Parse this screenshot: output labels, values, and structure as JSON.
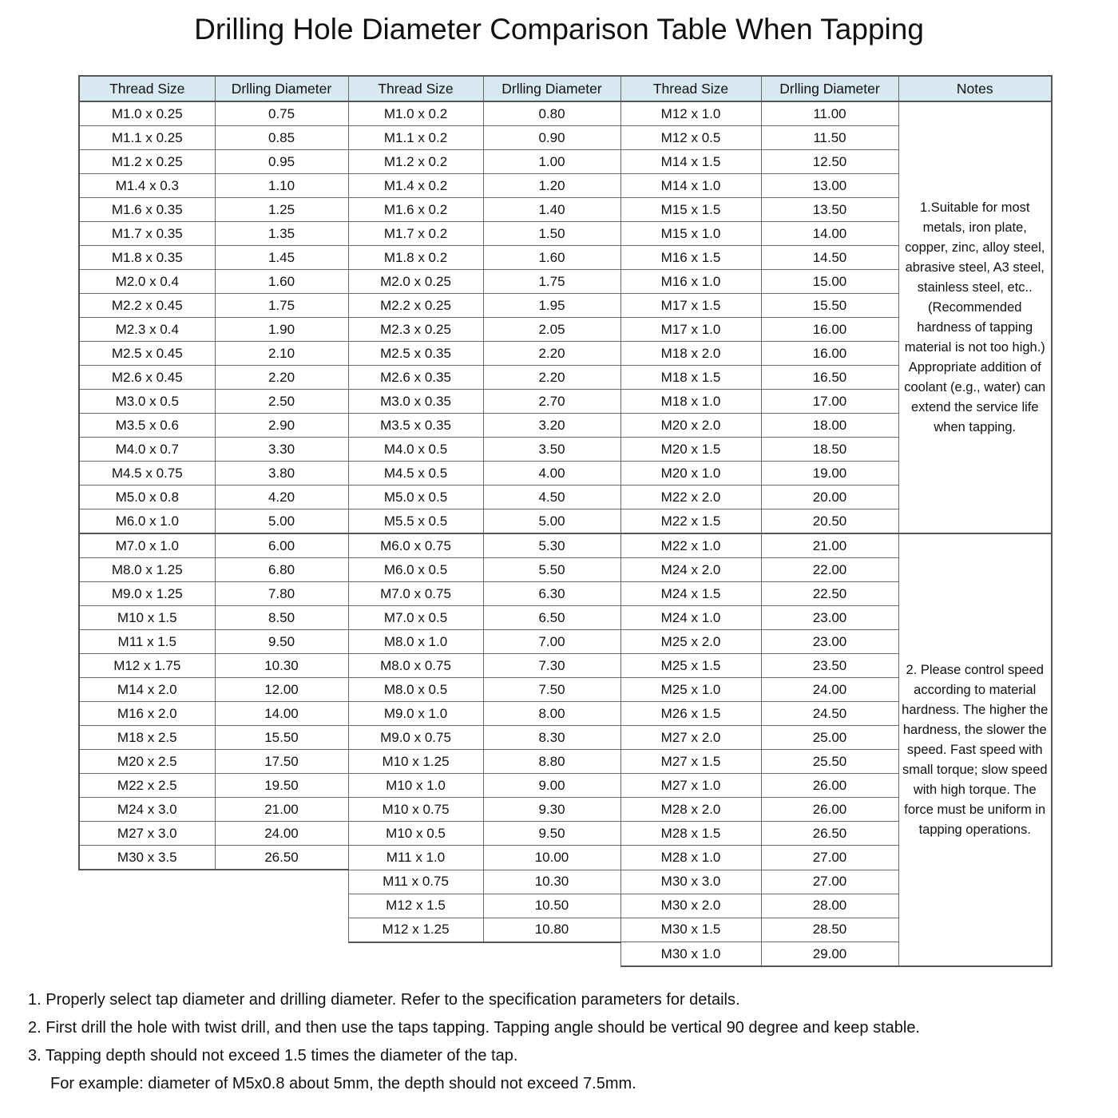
{
  "title": "Drilling Hole Diameter Comparison Table When Tapping",
  "colors": {
    "header_bg": "#d8e9f1",
    "border": "#6a6a6a"
  },
  "table": {
    "headers": [
      "Thread Size",
      "Drlling Diameter",
      "Thread Size",
      "Drlling Diameter",
      "Thread Size",
      "Drlling Diameter",
      "Notes"
    ],
    "total_rows": 36,
    "note_split_row": 18,
    "col1": [
      [
        "M1.0 x 0.25",
        "0.75"
      ],
      [
        "M1.1 x 0.25",
        "0.85"
      ],
      [
        "M1.2 x 0.25",
        "0.95"
      ],
      [
        "M1.4 x 0.3",
        "1.10"
      ],
      [
        "M1.6 x 0.35",
        "1.25"
      ],
      [
        "M1.7 x 0.35",
        "1.35"
      ],
      [
        "M1.8 x 0.35",
        "1.45"
      ],
      [
        "M2.0 x 0.4",
        "1.60"
      ],
      [
        "M2.2 x 0.45",
        "1.75"
      ],
      [
        "M2.3 x 0.4",
        "1.90"
      ],
      [
        "M2.5 x 0.45",
        "2.10"
      ],
      [
        "M2.6 x 0.45",
        "2.20"
      ],
      [
        "M3.0 x 0.5",
        "2.50"
      ],
      [
        "M3.5 x 0.6",
        "2.90"
      ],
      [
        "M4.0 x 0.7",
        "3.30"
      ],
      [
        "M4.5 x 0.75",
        "3.80"
      ],
      [
        "M5.0 x 0.8",
        "4.20"
      ],
      [
        "M6.0 x 1.0",
        "5.00"
      ],
      [
        "M7.0 x 1.0",
        "6.00"
      ],
      [
        "M8.0 x 1.25",
        "6.80"
      ],
      [
        "M9.0 x 1.25",
        "7.80"
      ],
      [
        "M10 x 1.5",
        "8.50"
      ],
      [
        "M11 x 1.5",
        "9.50"
      ],
      [
        "M12 x 1.75",
        "10.30"
      ],
      [
        "M14 x 2.0",
        "12.00"
      ],
      [
        "M16 x 2.0",
        "14.00"
      ],
      [
        "M18 x 2.5",
        "15.50"
      ],
      [
        "M20 x 2.5",
        "17.50"
      ],
      [
        "M22 x 2.5",
        "19.50"
      ],
      [
        "M24 x 3.0",
        "21.00"
      ],
      [
        "M27 x 3.0",
        "24.00"
      ],
      [
        "M30 x 3.5",
        "26.50"
      ]
    ],
    "col2": [
      [
        "M1.0 x 0.2",
        "0.80"
      ],
      [
        "M1.1 x 0.2",
        "0.90"
      ],
      [
        "M1.2 x 0.2",
        "1.00"
      ],
      [
        "M1.4 x 0.2",
        "1.20"
      ],
      [
        "M1.6 x 0.2",
        "1.40"
      ],
      [
        "M1.7 x 0.2",
        "1.50"
      ],
      [
        "M1.8 x 0.2",
        "1.60"
      ],
      [
        "M2.0 x 0.25",
        "1.75"
      ],
      [
        "M2.2 x 0.25",
        "1.95"
      ],
      [
        "M2.3 x 0.25",
        "2.05"
      ],
      [
        "M2.5 x 0.35",
        "2.20"
      ],
      [
        "M2.6 x 0.35",
        "2.20"
      ],
      [
        "M3.0 x 0.35",
        "2.70"
      ],
      [
        "M3.5 x 0.35",
        "3.20"
      ],
      [
        "M4.0 x 0.5",
        "3.50"
      ],
      [
        "M4.5 x 0.5",
        "4.00"
      ],
      [
        "M5.0 x 0.5",
        "4.50"
      ],
      [
        "M5.5 x 0.5",
        "5.00"
      ],
      [
        "M6.0 x 0.75",
        "5.30"
      ],
      [
        "M6.0 x 0.5",
        "5.50"
      ],
      [
        "M7.0 x 0.75",
        "6.30"
      ],
      [
        "M7.0 x 0.5",
        "6.50"
      ],
      [
        "M8.0 x 1.0",
        "7.00"
      ],
      [
        "M8.0 x 0.75",
        "7.30"
      ],
      [
        "M8.0 x 0.5",
        "7.50"
      ],
      [
        "M9.0 x 1.0",
        "8.00"
      ],
      [
        "M9.0 x 0.75",
        "8.30"
      ],
      [
        "M10 x 1.25",
        "8.80"
      ],
      [
        "M10 x 1.0",
        "9.00"
      ],
      [
        "M10 x 0.75",
        "9.30"
      ],
      [
        "M10 x 0.5",
        "9.50"
      ],
      [
        "M11 x 1.0",
        "10.00"
      ],
      [
        "M11 x 0.75",
        "10.30"
      ],
      [
        "M12 x 1.5",
        "10.50"
      ],
      [
        "M12 x 1.25",
        "10.80"
      ]
    ],
    "col3": [
      [
        "M12 x 1.0",
        "11.00"
      ],
      [
        "M12 x 0.5",
        "11.50"
      ],
      [
        "M14 x 1.5",
        "12.50"
      ],
      [
        "M14 x 1.0",
        "13.00"
      ],
      [
        "M15 x 1.5",
        "13.50"
      ],
      [
        "M15 x 1.0",
        "14.00"
      ],
      [
        "M16 x 1.5",
        "14.50"
      ],
      [
        "M16 x 1.0",
        "15.00"
      ],
      [
        "M17 x 1.5",
        "15.50"
      ],
      [
        "M17 x 1.0",
        "16.00"
      ],
      [
        "M18 x 2.0",
        "16.00"
      ],
      [
        "M18 x 1.5",
        "16.50"
      ],
      [
        "M18 x 1.0",
        "17.00"
      ],
      [
        "M20 x 2.0",
        "18.00"
      ],
      [
        "M20 x 1.5",
        "18.50"
      ],
      [
        "M20 x 1.0",
        "19.00"
      ],
      [
        "M22 x 2.0",
        "20.00"
      ],
      [
        "M22 x 1.5",
        "20.50"
      ],
      [
        "M22 x 1.0",
        "21.00"
      ],
      [
        "M24 x 2.0",
        "22.00"
      ],
      [
        "M24 x 1.5",
        "22.50"
      ],
      [
        "M24 x 1.0",
        "23.00"
      ],
      [
        "M25 x 2.0",
        "23.00"
      ],
      [
        "M25 x 1.5",
        "23.50"
      ],
      [
        "M25 x 1.0",
        "24.00"
      ],
      [
        "M26 x 1.5",
        "24.50"
      ],
      [
        "M27 x 2.0",
        "25.00"
      ],
      [
        "M27 x 1.5",
        "25.50"
      ],
      [
        "M27 x 1.0",
        "26.00"
      ],
      [
        "M28 x 2.0",
        "26.00"
      ],
      [
        "M28 x 1.5",
        "26.50"
      ],
      [
        "M28 x 1.0",
        "27.00"
      ],
      [
        "M30 x 3.0",
        "27.00"
      ],
      [
        "M30 x 2.0",
        "28.00"
      ],
      [
        "M30 x 1.5",
        "28.50"
      ],
      [
        "M30 x 1.0",
        "29.00"
      ]
    ],
    "notes": [
      "1.Suitable for most metals, iron plate, copper, zinc, alloy steel, abrasive steel, A3 steel, stainless steel, etc..(Recommended hardness of tapping material is not too high.) Appropriate addition of coolant (e.g., water) can extend the service life when tapping.",
      "2. Please control speed according to material hardness. The higher the hardness, the slower the speed. Fast speed with small torque; slow speed with high torque. The force must be uniform in tapping operations."
    ]
  },
  "footnotes": [
    "1. Properly select tap diameter and drilling diameter. Refer to the specification parameters for details.",
    "2. First drill the hole with twist drill, and then use the taps tapping. Tapping angle should be vertical 90 degree and keep stable.",
    "3. Tapping depth should not exceed 1.5 times the diameter of the tap.",
    "For example: diameter of M5x0.8 about 5mm, the depth should not exceed 7.5mm."
  ]
}
